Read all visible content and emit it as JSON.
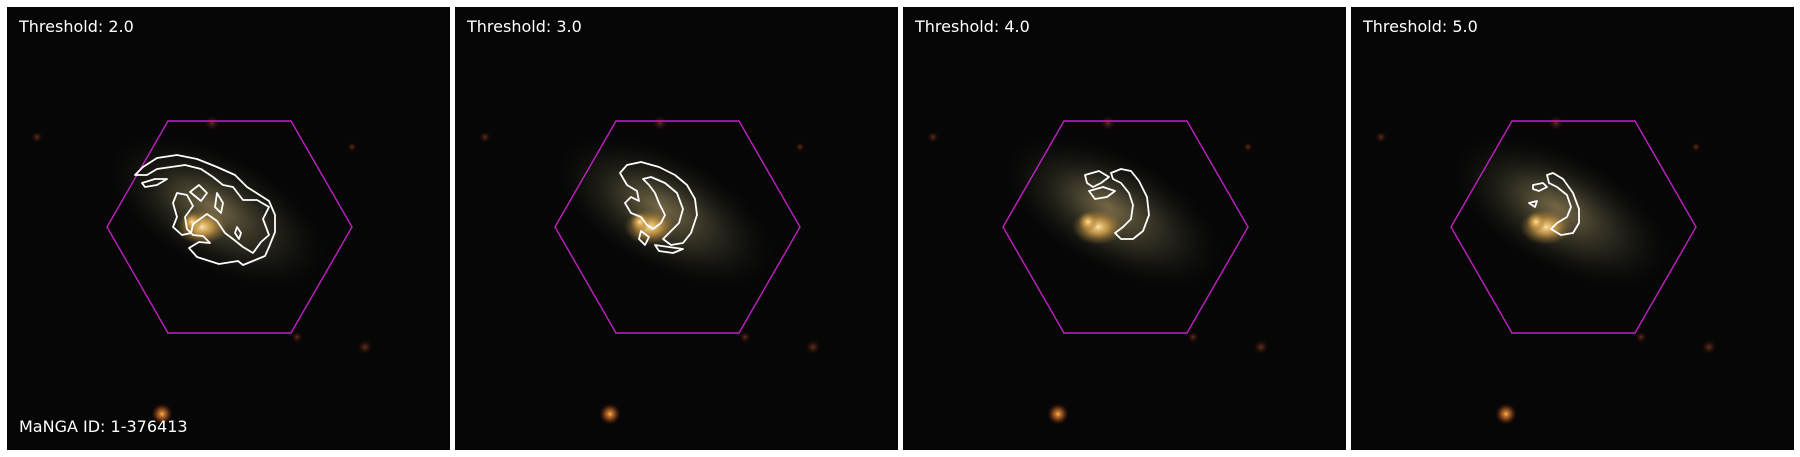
{
  "panels": [
    {
      "label": "Threshold: 2.0"
    },
    {
      "label": "Threshold: 3.0"
    },
    {
      "label": "Threshold: 4.0"
    },
    {
      "label": "Threshold: 5.0"
    }
  ],
  "manga_id": "MaNGA ID: 1-376413",
  "colors": {
    "hexagon": "#c020c0",
    "contour": "#ffffff",
    "label_text": "#ffffff",
    "background": "#050505"
  }
}
